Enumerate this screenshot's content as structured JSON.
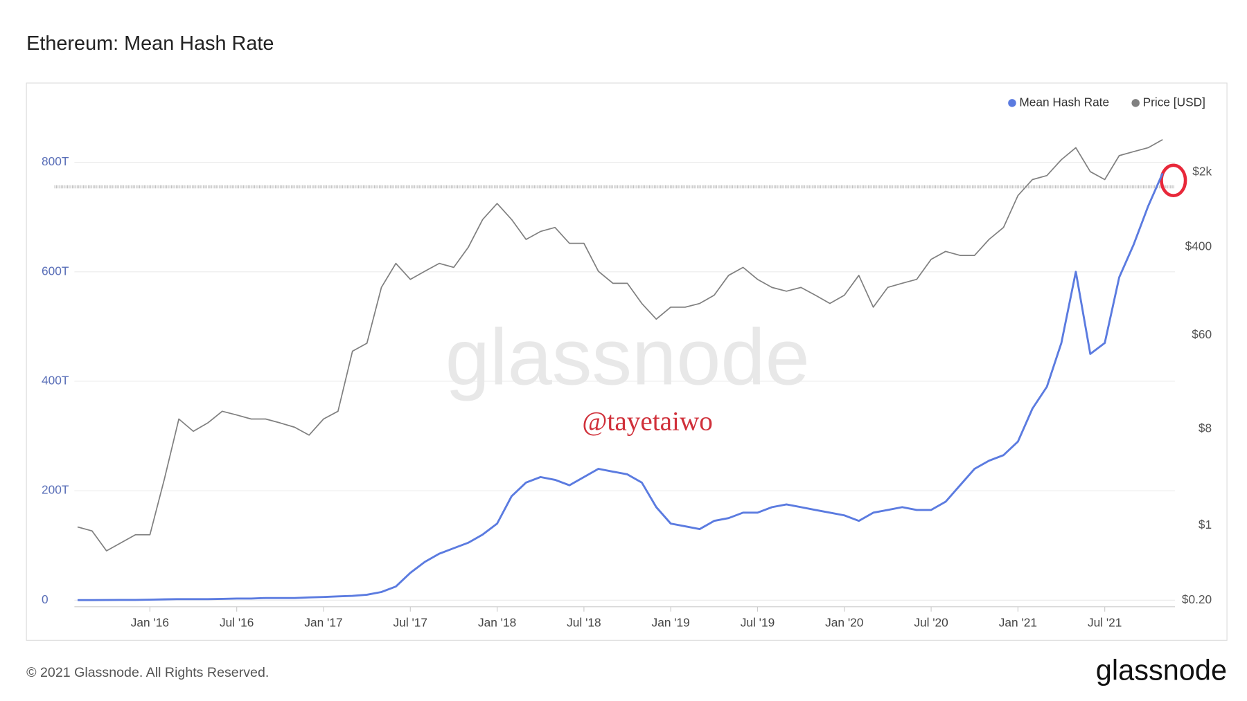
{
  "chart_data": {
    "type": "line",
    "title": "Ethereum: Mean Hash Rate",
    "watermark": "glassnode",
    "annotation": "@tayetaiwo",
    "footer": "© 2021 Glassnode. All Rights Reserved.",
    "logo": "glassnode",
    "x": [
      "Aug '15",
      "Sep '15",
      "Oct '15",
      "Nov '15",
      "Dec '15",
      "Jan '16",
      "Feb '16",
      "Mar '16",
      "Apr '16",
      "May '16",
      "Jun '16",
      "Jul '16",
      "Aug '16",
      "Sep '16",
      "Oct '16",
      "Nov '16",
      "Dec '16",
      "Jan '17",
      "Feb '17",
      "Mar '17",
      "Apr '17",
      "May '17",
      "Jun '17",
      "Jul '17",
      "Aug '17",
      "Sep '17",
      "Oct '17",
      "Nov '17",
      "Dec '17",
      "Jan '18",
      "Feb '18",
      "Mar '18",
      "Apr '18",
      "May '18",
      "Jun '18",
      "Jul '18",
      "Aug '18",
      "Sep '18",
      "Oct '18",
      "Nov '18",
      "Dec '18",
      "Jan '19",
      "Feb '19",
      "Mar '19",
      "Apr '19",
      "May '19",
      "Jun '19",
      "Jul '19",
      "Aug '19",
      "Sep '19",
      "Oct '19",
      "Nov '19",
      "Dec '19",
      "Jan '20",
      "Feb '20",
      "Mar '20",
      "Apr '20",
      "May '20",
      "Jun '20",
      "Jul '20",
      "Aug '20",
      "Sep '20",
      "Oct '20",
      "Nov '20",
      "Dec '20",
      "Jan '21",
      "Feb '21",
      "Mar '21",
      "Apr '21",
      "May '21",
      "Jun '21",
      "Jul '21",
      "Aug '21",
      "Sep '21",
      "Oct '21",
      "Nov '21"
    ],
    "xticks": [
      "Jan '16",
      "Jul '16",
      "Jan '17",
      "Jul '17",
      "Jan '18",
      "Jul '18",
      "Jan '19",
      "Jul '19",
      "Jan '20",
      "Jul '20",
      "Jan '21",
      "Jul '21"
    ],
    "series": [
      {
        "name": "Mean Hash Rate",
        "color": "#5b7be0",
        "values": [
          0.2,
          0.3,
          0.4,
          0.5,
          0.6,
          1,
          1.5,
          2,
          2,
          2,
          2.5,
          3,
          3,
          4,
          4,
          4,
          5,
          6,
          7,
          8,
          10,
          15,
          25,
          50,
          70,
          85,
          95,
          105,
          120,
          140,
          190,
          215,
          225,
          220,
          210,
          225,
          240,
          235,
          230,
          215,
          170,
          140,
          135,
          130,
          145,
          150,
          160,
          160,
          170,
          175,
          170,
          165,
          160,
          155,
          145,
          160,
          165,
          170,
          165,
          165,
          180,
          210,
          240,
          255,
          265,
          290,
          350,
          390,
          470,
          600,
          450,
          470,
          590,
          650,
          720,
          780
        ]
      },
      {
        "name": "Price [USD]",
        "color": "#808080",
        "axis": "y2",
        "values": [
          0.97,
          0.89,
          0.58,
          0.69,
          0.82,
          0.82,
          2.72,
          9.9,
          7.6,
          9.1,
          11.7,
          10.8,
          9.9,
          9.9,
          9.1,
          8.3,
          7.0,
          9.9,
          11.7,
          42.6,
          50.6,
          168,
          282,
          200,
          238,
          282,
          259,
          398,
          726,
          1023,
          726,
          472,
          561,
          611,
          434,
          434,
          238,
          184,
          184,
          119,
          85,
          110,
          110,
          119,
          142,
          218,
          259,
          200,
          168,
          155,
          168,
          142,
          119,
          142,
          218,
          110,
          168,
          184,
          200,
          308,
          365,
          335,
          335,
          472,
          611,
          1216,
          1714,
          1866,
          2630,
          3404,
          2032,
          1714,
          2870,
          3126,
          3404,
          4046
        ]
      }
    ],
    "ylim": [
      -12,
      888
    ],
    "yticks": [
      {
        "value": 0,
        "label": "0"
      },
      {
        "value": 200,
        "label": "200T"
      },
      {
        "value": 400,
        "label": "400T"
      },
      {
        "value": 600,
        "label": "600T"
      },
      {
        "value": 800,
        "label": "800T"
      }
    ],
    "y2lim": [
      0.174,
      7000
    ],
    "y2log": true,
    "y2ticks": [
      {
        "value": 0.2,
        "label": "$0.20"
      },
      {
        "value": 1,
        "label": "$1"
      },
      {
        "value": 8,
        "label": "$8"
      },
      {
        "value": 60,
        "label": "$60"
      },
      {
        "value": 400,
        "label": "$400"
      },
      {
        "value": 2000,
        "label": "$2k"
      }
    ],
    "grid": true,
    "legend": "top-right"
  }
}
